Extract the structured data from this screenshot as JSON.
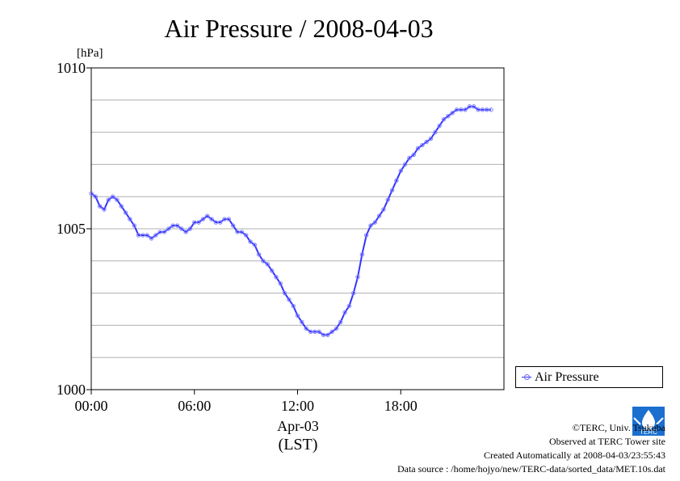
{
  "chart_data": {
    "type": "line",
    "title": "Air Pressure / 2008-04-03",
    "ylabel": "[hPa]",
    "xlabel_date": "Apr-03",
    "xlabel_tz": "(LST)",
    "x_unit": "hour",
    "xlim": [
      0,
      24
    ],
    "ylim": [
      1000,
      1010
    ],
    "x_ticks": [
      {
        "value": 0,
        "label": "00:00"
      },
      {
        "value": 6,
        "label": "06:00"
      },
      {
        "value": 12,
        "label": "12:00"
      },
      {
        "value": 18,
        "label": "18:00"
      }
    ],
    "y_ticks": [
      {
        "value": 1000,
        "label": "1000"
      },
      {
        "value": 1005,
        "label": "1005"
      },
      {
        "value": 1010,
        "label": "1010"
      }
    ],
    "y_grid": [
      1001,
      1002,
      1003,
      1004,
      1005,
      1006,
      1007,
      1008,
      1009
    ],
    "grid": true,
    "legend_position": "right-bottom",
    "series": [
      {
        "name": "Air Pressure",
        "color": "#3333ff",
        "marker_color": "#8080ff",
        "x": [
          0,
          0.25,
          0.5,
          0.75,
          1.0,
          1.25,
          1.5,
          1.75,
          2.0,
          2.25,
          2.5,
          2.75,
          3.0,
          3.25,
          3.5,
          3.75,
          4.0,
          4.25,
          4.5,
          4.75,
          5.0,
          5.25,
          5.5,
          5.75,
          6.0,
          6.25,
          6.5,
          6.75,
          7.0,
          7.25,
          7.5,
          7.75,
          8.0,
          8.25,
          8.5,
          8.75,
          9.0,
          9.25,
          9.5,
          9.75,
          10.0,
          10.25,
          10.5,
          10.75,
          11.0,
          11.25,
          11.5,
          11.75,
          12.0,
          12.25,
          12.5,
          12.75,
          13.0,
          13.25,
          13.5,
          13.75,
          14.0,
          14.25,
          14.5,
          14.75,
          15.0,
          15.25,
          15.5,
          15.75,
          16.0,
          16.25,
          16.5,
          16.75,
          17.0,
          17.25,
          17.5,
          17.75,
          18.0,
          18.25,
          18.5,
          18.75,
          19.0,
          19.25,
          19.5,
          19.75,
          20.0,
          20.25,
          20.5,
          20.75,
          21.0,
          21.25,
          21.5,
          21.75,
          22.0,
          22.25,
          22.5,
          22.75,
          23.0,
          23.25
        ],
        "values": [
          1006.1,
          1006.0,
          1005.7,
          1005.6,
          1005.9,
          1006.0,
          1005.9,
          1005.7,
          1005.5,
          1005.3,
          1005.1,
          1004.8,
          1004.8,
          1004.8,
          1004.7,
          1004.8,
          1004.9,
          1004.9,
          1005.0,
          1005.1,
          1005.1,
          1005.0,
          1004.9,
          1005.0,
          1005.2,
          1005.2,
          1005.3,
          1005.4,
          1005.3,
          1005.2,
          1005.2,
          1005.3,
          1005.3,
          1005.1,
          1004.9,
          1004.9,
          1004.8,
          1004.6,
          1004.5,
          1004.2,
          1004.0,
          1003.9,
          1003.7,
          1003.5,
          1003.3,
          1003.0,
          1002.8,
          1002.6,
          1002.3,
          1002.1,
          1001.9,
          1001.8,
          1001.8,
          1001.8,
          1001.7,
          1001.7,
          1001.8,
          1001.9,
          1002.1,
          1002.4,
          1002.6,
          1003.0,
          1003.5,
          1004.2,
          1004.8,
          1005.1,
          1005.2,
          1005.4,
          1005.6,
          1005.9,
          1006.2,
          1006.5,
          1006.8,
          1007.0,
          1007.2,
          1007.3,
          1007.5,
          1007.6,
          1007.7,
          1007.8,
          1008.0,
          1008.2,
          1008.4,
          1008.5,
          1008.6,
          1008.7,
          1008.7,
          1008.7,
          1008.8,
          1008.8,
          1008.7,
          1008.7,
          1008.7,
          1008.7
        ]
      }
    ]
  },
  "footer": {
    "copyright": "©TERC, Univ. Tsukuba",
    "observed": "Observed at TERC Tower site",
    "created": "Created Automatically at 2008-04-03/23:55:43",
    "source": "Data source : /home/hojyo/new/TERC-data/sorted_data/MET.10s.dat"
  },
  "logo": {
    "text": "TERC",
    "color": "#1a6fcf"
  }
}
